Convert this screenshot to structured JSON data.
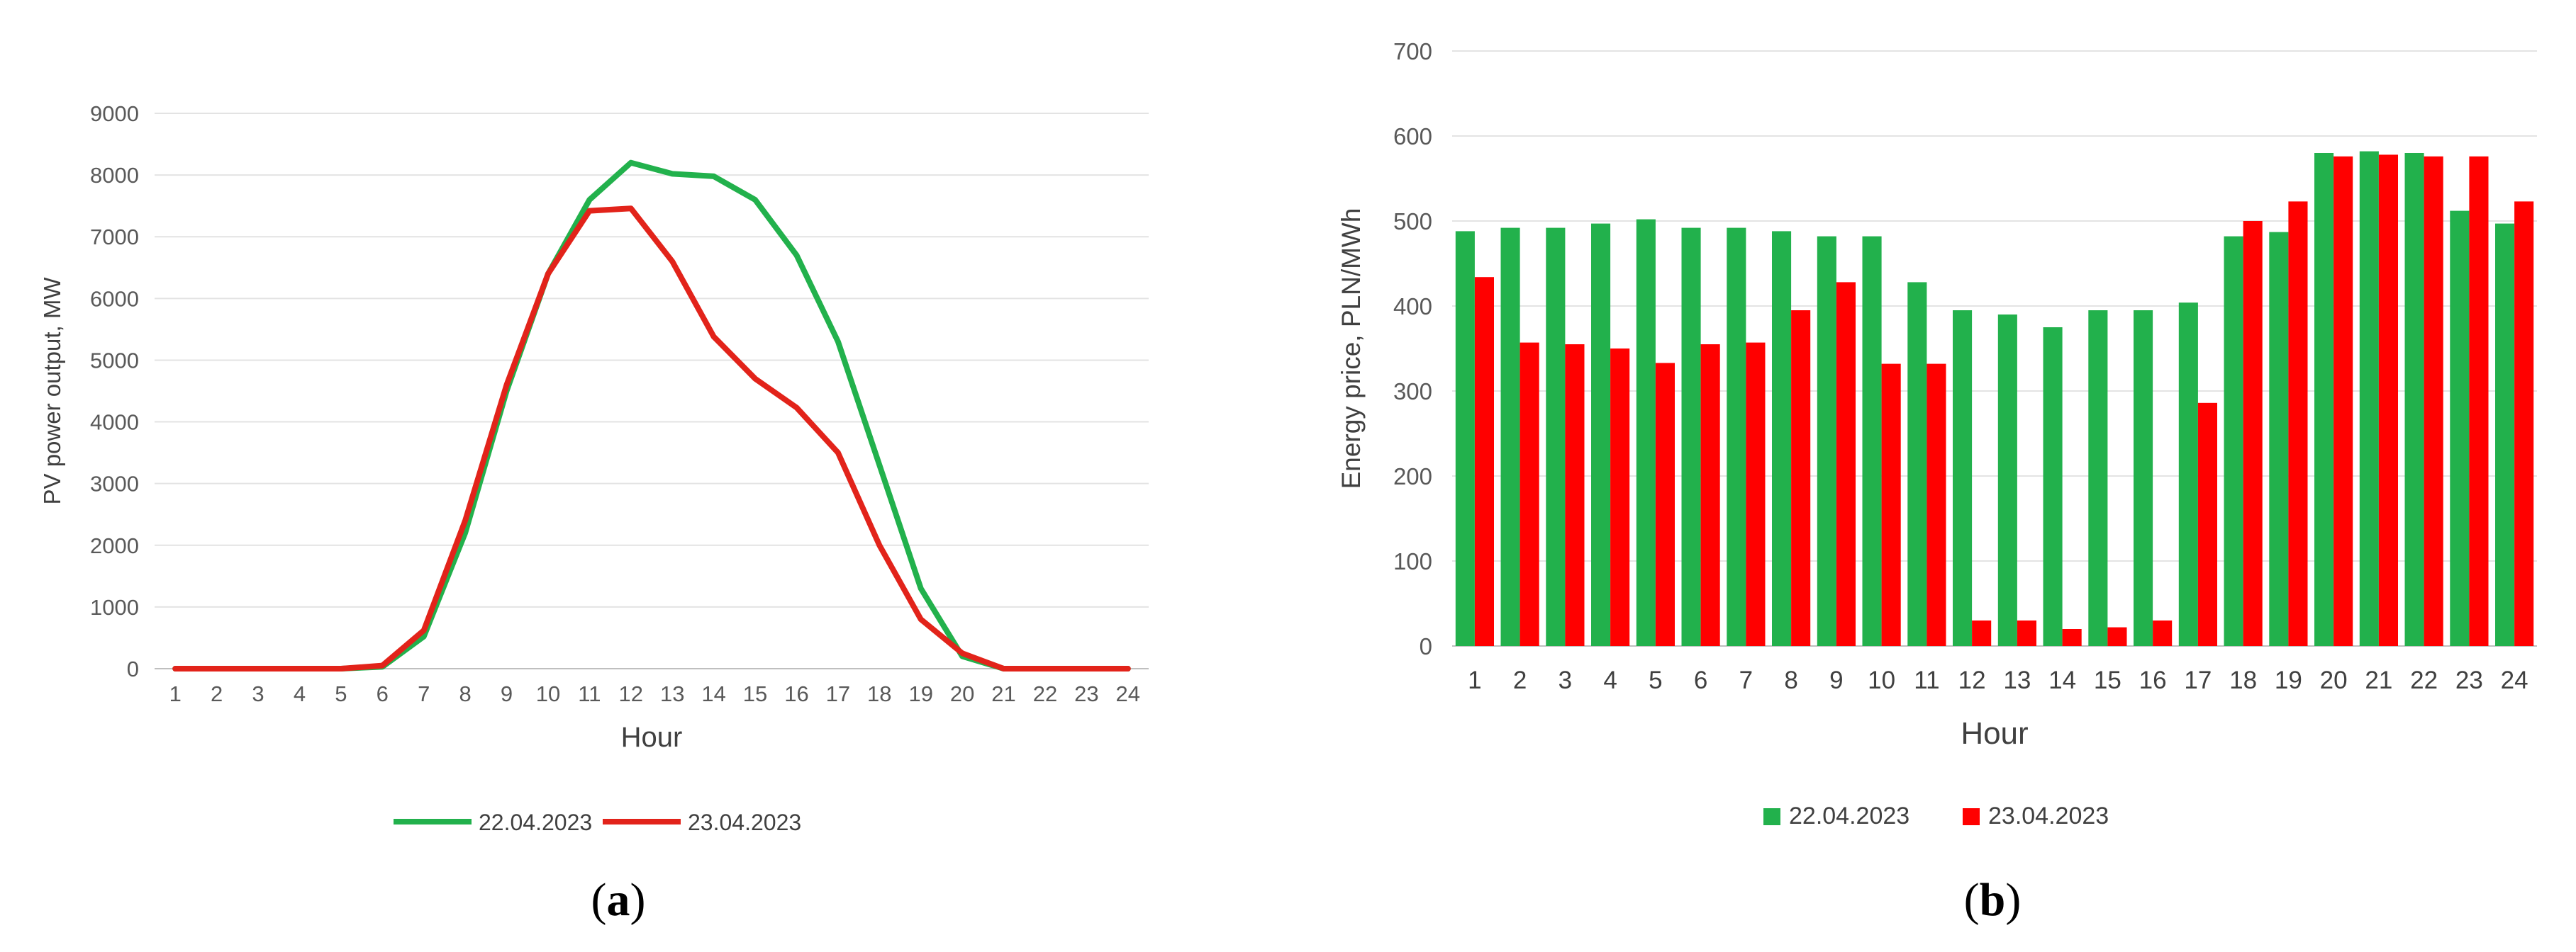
{
  "chart_data": [
    {
      "type": "line",
      "panel_label": "a",
      "xlabel": "Hour",
      "ylabel": "PV power output, MW",
      "x": [
        1,
        2,
        3,
        4,
        5,
        6,
        7,
        8,
        9,
        10,
        11,
        12,
        13,
        14,
        15,
        16,
        17,
        18,
        19,
        20,
        21,
        22,
        23,
        24
      ],
      "ylim": [
        0,
        9000
      ],
      "yticks": [
        0,
        1000,
        2000,
        3000,
        4000,
        5000,
        6000,
        7000,
        8000,
        9000
      ],
      "grid": true,
      "legend": "bottom",
      "series": [
        {
          "name": "22.04.2023",
          "color": "#22b14c",
          "values": [
            0,
            0,
            0,
            0,
            0,
            30,
            520,
            2200,
            4500,
            6400,
            7600,
            8200,
            8020,
            7980,
            7600,
            6700,
            5300,
            3300,
            1300,
            200,
            0,
            0,
            0,
            0
          ]
        },
        {
          "name": "23.04.2023",
          "color": "#e2231a",
          "values": [
            0,
            0,
            0,
            0,
            0,
            50,
            620,
            2400,
            4600,
            6400,
            7420,
            7460,
            6600,
            5380,
            4700,
            4230,
            3500,
            2000,
            800,
            250,
            0,
            0,
            0,
            0
          ]
        }
      ]
    },
    {
      "type": "bar",
      "panel_label": "b",
      "xlabel": "Hour",
      "ylabel": "Energy price, PLN/MWh",
      "categories": [
        "1",
        "2",
        "3",
        "4",
        "5",
        "6",
        "7",
        "8",
        "9",
        "10",
        "11",
        "12",
        "13",
        "14",
        "15",
        "16",
        "17",
        "18",
        "19",
        "20",
        "21",
        "22",
        "23",
        "24"
      ],
      "ylim": [
        0,
        700
      ],
      "yticks": [
        0,
        100,
        200,
        300,
        400,
        500,
        600,
        700
      ],
      "grid": true,
      "legend": "bottom",
      "series": [
        {
          "name": "22.04.2023",
          "color": "#22b14c",
          "values": [
            488,
            492,
            492,
            497,
            502,
            492,
            492,
            488,
            482,
            482,
            428,
            395,
            390,
            375,
            395,
            395,
            404,
            482,
            487,
            580,
            582,
            580,
            512,
            497
          ]
        },
        {
          "name": "23.04.2023",
          "color": "#ff0000",
          "values": [
            434,
            357,
            355,
            350,
            333,
            355,
            357,
            395,
            428,
            332,
            332,
            30,
            30,
            20,
            22,
            30,
            286,
            500,
            523,
            576,
            578,
            576,
            576,
            523
          ]
        }
      ]
    }
  ]
}
